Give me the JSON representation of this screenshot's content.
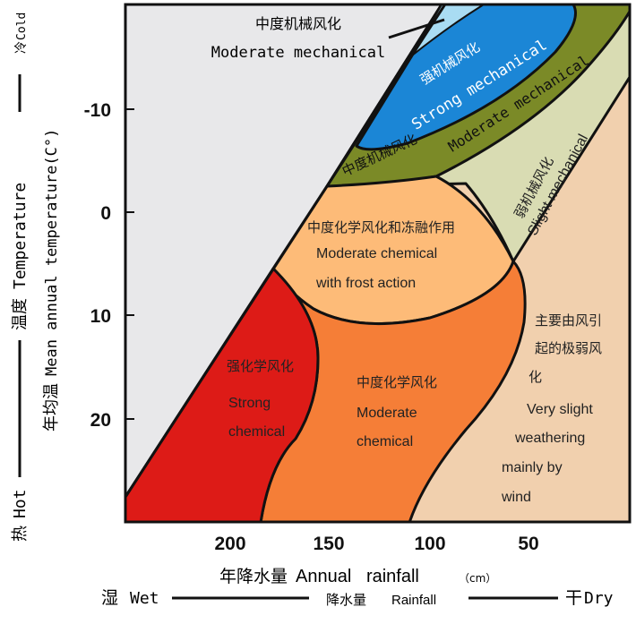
{
  "colors": {
    "background_gray": "#e8e8ea",
    "light_blue": "#a9dcf3",
    "strong_mechanical": "#1b86d6",
    "moderate_mechanical": "#7b8a27",
    "slight_mechanical": "#d9dcb3",
    "frost_action": "#fdbb78",
    "strong_chemical": "#dd1b17",
    "moderate_chemical": "#f57e37",
    "very_slight": "#f1d0ae"
  },
  "y_axis": {
    "ticks": [
      "-10",
      "0",
      "10",
      "20"
    ],
    "outer_label": {
      "hot_zh": "热",
      "hot": "Hot",
      "temp_zh": "温度",
      "temp": "Temperature",
      "cold_zh": "冷",
      "cold": "Cold"
    },
    "inner_label": {
      "zh": "年均温",
      "en": "Mean annual temperature(C°)"
    }
  },
  "x_axis": {
    "ticks": [
      "200",
      "150",
      "100",
      "50"
    ],
    "label_zh": "年降水量",
    "label_en": "Annual   rainfall",
    "unit": "（cm）",
    "outer_label": {
      "wet_zh": "湿",
      "wet": "Wet",
      "rain_zh": "降水量",
      "rain": "Rainfall",
      "dry_zh": "干",
      "dry": "Dry"
    }
  },
  "regions": {
    "moderate_mechanical_callout": {
      "zh": "中度机械风化",
      "en": "Moderate mechanical"
    },
    "strong_mechanical": {
      "zh": "强机械风化",
      "en": "Strong mechanical"
    },
    "moderate_mechanical": {
      "zh": "中度机械风化",
      "en": "Moderate mechanical"
    },
    "slight_mechanical": {
      "zh": "弱机械风化",
      "en": "Slight mechanical"
    },
    "frost": {
      "zh": "中度化学风化和冻融作用",
      "en1": "Moderate chemical",
      "en2": "with frost action"
    },
    "strong_chemical": {
      "zh": "强化学风化",
      "en1": "Strong",
      "en2": "chemical"
    },
    "moderate_chemical": {
      "zh": "中度化学风化",
      "en1": "Moderate",
      "en2": "chemical"
    },
    "very_slight": {
      "zh1": "主要由风引",
      "zh2": "起的极弱风",
      "zh3": "化",
      "en1": "Very slight",
      "en2": "weathering",
      "en3": "mainly by",
      "en4": "wind"
    }
  }
}
